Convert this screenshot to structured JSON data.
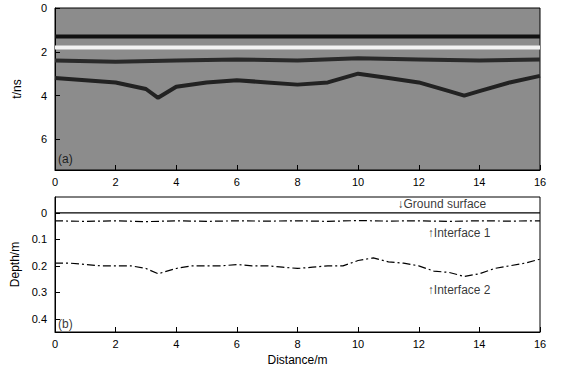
{
  "chart_data": [
    {
      "type": "line",
      "label": "(a)",
      "ylabel": "t/ns",
      "xlim": [
        0,
        16
      ],
      "xticks": [
        0,
        2,
        4,
        6,
        8,
        10,
        12,
        14,
        16
      ],
      "ylim": [
        7.4,
        0
      ],
      "yticks": [
        0,
        2,
        4,
        6
      ],
      "grid": false,
      "series": [
        {
          "color": "#111111",
          "line_style": "solid",
          "x": [
            0,
            4,
            8,
            12,
            16
          ],
          "values": [
            1.3,
            1.3,
            1.3,
            1.3,
            1.3
          ]
        },
        {
          "color": "#f2f2f2",
          "line_style": "solid",
          "x": [
            0,
            4,
            8,
            12,
            16
          ],
          "values": [
            1.8,
            1.8,
            1.8,
            1.8,
            1.8
          ]
        },
        {
          "color": "#2a2a2a",
          "line_style": "solid",
          "x": [
            0,
            2,
            4,
            6,
            8,
            10,
            12,
            14,
            16
          ],
          "values": [
            2.4,
            2.45,
            2.4,
            2.35,
            2.4,
            2.3,
            2.35,
            2.4,
            2.35
          ]
        },
        {
          "color": "#222222",
          "line_style": "solid",
          "x": [
            0,
            1,
            2,
            3,
            3.4,
            4,
            5,
            6,
            7,
            8,
            9,
            10,
            11,
            12,
            13,
            13.5,
            14,
            15,
            16
          ],
          "values": [
            3.2,
            3.3,
            3.4,
            3.7,
            4.1,
            3.6,
            3.4,
            3.3,
            3.4,
            3.5,
            3.4,
            3.0,
            3.2,
            3.4,
            3.8,
            4.0,
            3.8,
            3.4,
            3.1
          ]
        }
      ],
      "annotations": [
        {
          "text": "(a)",
          "x": 0.1,
          "y": 6.9
        }
      ]
    },
    {
      "type": "line",
      "label": "(b)",
      "xlabel": "Distance/m",
      "ylabel": "Depth/m",
      "xlim": [
        0,
        16
      ],
      "xticks": [
        0,
        2,
        4,
        6,
        8,
        10,
        12,
        14,
        16
      ],
      "ylim": [
        0.45,
        -0.06
      ],
      "yticks": [
        0,
        0.1,
        0.2,
        0.3,
        0.4
      ],
      "grid": false,
      "series": [
        {
          "color": "#000000",
          "line_style": "solid",
          "x": [
            0,
            16
          ],
          "values": [
            0,
            0
          ]
        },
        {
          "color": "#000000",
          "line_style": "dashdot",
          "x": [
            0,
            1,
            2,
            3,
            4,
            5,
            6,
            7,
            8,
            9,
            10,
            11,
            12,
            13,
            14,
            15,
            16
          ],
          "values": [
            0.03,
            0.032,
            0.03,
            0.033,
            0.03,
            0.032,
            0.03,
            0.031,
            0.03,
            0.032,
            0.029,
            0.031,
            0.03,
            0.032,
            0.03,
            0.031,
            0.03
          ]
        },
        {
          "color": "#000000",
          "line_style": "dashdot",
          "x": [
            0,
            0.5,
            1,
            1.5,
            2,
            2.5,
            3,
            3.4,
            4,
            4.5,
            5,
            5.5,
            6,
            6.5,
            7,
            7.5,
            8,
            8.5,
            9,
            9.5,
            10,
            10.5,
            11,
            11.5,
            12,
            12.5,
            13,
            13.5,
            14,
            14.5,
            15,
            15.5,
            16
          ],
          "values": [
            0.19,
            0.19,
            0.195,
            0.2,
            0.2,
            0.2,
            0.21,
            0.23,
            0.21,
            0.2,
            0.2,
            0.2,
            0.195,
            0.2,
            0.2,
            0.205,
            0.21,
            0.205,
            0.2,
            0.2,
            0.18,
            0.17,
            0.185,
            0.19,
            0.2,
            0.22,
            0.225,
            0.24,
            0.23,
            0.21,
            0.2,
            0.19,
            0.175
          ]
        }
      ],
      "annotations": [
        {
          "text": "↓Ground surface",
          "x": 11.3,
          "y": -0.035
        },
        {
          "text": "↑Interface 1",
          "x": 12.3,
          "y": 0.075
        },
        {
          "text": "↑Interface 2",
          "x": 12.3,
          "y": 0.29
        },
        {
          "text": "(b)",
          "x": 0.1,
          "y": 0.42
        }
      ]
    }
  ]
}
